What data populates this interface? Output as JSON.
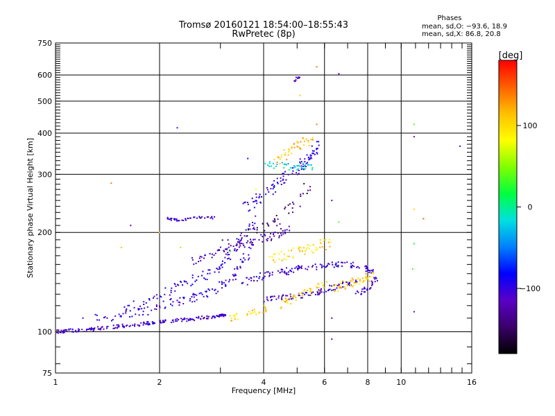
{
  "chart_data": {
    "type": "scatter",
    "title": "Tromsø 20160121 18:54:00–18:55:43",
    "subtitle": "RwPretec (8p)",
    "xlabel": "Frequency [MHz]",
    "ylabel": "Stationary phase Virtual Height [km]",
    "x_scale": "log",
    "y_scale": "log",
    "xlim": [
      1,
      16
    ],
    "ylim": [
      75,
      750
    ],
    "x_ticks": [
      1,
      2,
      4,
      6,
      8,
      10,
      16
    ],
    "x_tick_labels": [
      "1",
      "2",
      "4",
      "6",
      "8",
      "10",
      "16"
    ],
    "x_grid": [
      2,
      4,
      6,
      8,
      10
    ],
    "y_ticks": [
      75,
      100,
      200,
      300,
      400,
      500,
      600,
      750
    ],
    "y_tick_labels": [
      "75",
      "100",
      "200",
      "300",
      "400",
      "500",
      "600",
      "750"
    ],
    "y_grid": [
      100,
      200,
      300,
      400,
      500,
      600
    ],
    "grid": true,
    "legend": {
      "heading": "Phases",
      "lines": [
        "mean, sd,O: −93.6, 18.9",
        "mean, sd,X:  86.8, 20.8"
      ],
      "placement": "top-right"
    },
    "colorbar": {
      "label": "[deg]",
      "min": -180,
      "max": 180,
      "ticks": [
        100,
        0,
        -100
      ],
      "tick_labels": [
        "100",
        "0",
        "−100"
      ],
      "colormap": [
        "#000000",
        "#3a006a",
        "#5a00c8",
        "#0000ff",
        "#0080ff",
        "#00e0e0",
        "#00ff40",
        "#80ff00",
        "#ffff00",
        "#ffc000",
        "#ff6000",
        "#ff0000"
      ]
    },
    "series": [
      {
        "x": [
          1.0,
          1.05,
          1.1,
          1.18,
          1.28,
          1.4,
          1.55,
          1.7,
          1.85,
          2.0,
          2.2,
          2.4,
          2.6,
          2.8,
          3.0,
          3.1
        ],
        "y": [
          100,
          100,
          101,
          101,
          102,
          103,
          104,
          105,
          106,
          107,
          108,
          109,
          110,
          111,
          112,
          113
        ],
        "phase": -110,
        "spread": 0.012,
        "density": 14
      },
      {
        "x": [
          1.3,
          1.5,
          1.7,
          1.9,
          2.1,
          2.3,
          2.5,
          2.7,
          2.9,
          3.1,
          3.3,
          3.5,
          3.7
        ],
        "y": [
          110,
          112,
          114,
          117,
          121,
          124,
          127,
          130,
          134,
          140,
          150,
          165,
          180
        ],
        "phase": -105,
        "spread": 0.03,
        "density": 10
      },
      {
        "x": [
          1.6,
          1.8,
          2.0,
          2.2,
          2.4,
          2.6,
          2.8,
          3.0,
          3.2,
          3.4,
          3.6,
          3.8
        ],
        "y": [
          118,
          122,
          128,
          135,
          140,
          145,
          152,
          160,
          170,
          185,
          200,
          220
        ],
        "phase": -100,
        "spread": 0.035,
        "density": 9
      },
      {
        "x": [
          2.4,
          2.7,
          3.0,
          3.3,
          3.6,
          3.9,
          4.2,
          4.5,
          4.8
        ],
        "y": [
          160,
          168,
          175,
          180,
          185,
          190,
          195,
          200,
          205
        ],
        "phase": -120,
        "spread": 0.03,
        "density": 10
      },
      {
        "x": [
          3.5,
          3.8,
          4.0,
          4.3,
          4.6,
          4.9,
          5.2,
          5.4,
          5.6,
          5.8
        ],
        "y": [
          240,
          250,
          260,
          275,
          290,
          305,
          320,
          335,
          350,
          370
        ],
        "phase": -100,
        "spread": 0.04,
        "density": 11
      },
      {
        "x": [
          3.4,
          3.7,
          4.0,
          4.3,
          4.6,
          4.9,
          5.2
        ],
        "y": [
          140,
          145,
          148,
          150,
          152,
          155,
          158
        ],
        "phase": -105,
        "spread": 0.025,
        "density": 10
      },
      {
        "x": [
          4.0,
          4.3,
          4.6,
          5.0,
          5.4,
          5.8,
          6.2,
          6.6,
          7.0,
          7.4
        ],
        "y": [
          125,
          126,
          127,
          128,
          130,
          132,
          135,
          138,
          140,
          142
        ],
        "phase": -110,
        "spread": 0.02,
        "density": 10
      },
      {
        "x": [
          5.0,
          5.5,
          6.0,
          6.5,
          7.0,
          7.5,
          8.0,
          8.4
        ],
        "y": [
          155,
          157,
          158,
          160,
          160,
          158,
          155,
          150
        ],
        "phase": -110,
        "spread": 0.02,
        "density": 10
      },
      {
        "x": [
          7.4,
          7.8,
          8.2,
          8.5
        ],
        "y": [
          130,
          133,
          138,
          145
        ],
        "phase": -110,
        "spread": 0.02,
        "density": 10
      },
      {
        "x": [
          2.1,
          2.2,
          2.3,
          2.5,
          2.7,
          2.9
        ],
        "y": [
          220,
          218,
          218,
          220,
          222,
          222
        ],
        "phase": -110,
        "spread": 0.01,
        "density": 8
      },
      {
        "x": [
          4.0,
          4.4,
          4.8,
          5.2,
          5.6
        ],
        "y": [
          320,
          318,
          316,
          316,
          316
        ],
        "phase": -20,
        "spread": 0.025,
        "density": 10
      },
      {
        "x": [
          4.5,
          4.8,
          5.2,
          5.6,
          6.0
        ],
        "y": [
          120,
          125,
          130,
          135,
          140
        ],
        "phase": 110,
        "spread": 0.03,
        "density": 11
      },
      {
        "x": [
          3.2,
          3.5,
          3.8,
          4.1
        ],
        "y": [
          110,
          113,
          115,
          118
        ],
        "phase": 105,
        "spread": 0.025,
        "density": 10
      },
      {
        "x": [
          4.2,
          4.6,
          5.0,
          5.4,
          5.8,
          6.2
        ],
        "y": [
          165,
          170,
          175,
          178,
          182,
          186
        ],
        "phase": 100,
        "spread": 0.035,
        "density": 11
      },
      {
        "x": [
          4.3,
          4.6,
          4.9,
          5.2,
          5.5
        ],
        "y": [
          330,
          345,
          360,
          375,
          390
        ],
        "phase": 115,
        "spread": 0.04,
        "density": 10
      },
      {
        "x": [
          6.3,
          6.7,
          7.1,
          7.5,
          7.9,
          8.3
        ],
        "y": [
          135,
          138,
          140,
          142,
          145,
          148
        ],
        "phase": 105,
        "spread": 0.03,
        "density": 10
      },
      {
        "x": [
          3.0,
          3.4,
          3.8,
          4.2,
          4.6,
          5.0,
          5.4
        ],
        "y": [
          180,
          190,
          200,
          215,
          230,
          250,
          270
        ],
        "phase": -140,
        "spread": 0.05,
        "density": 9
      },
      {
        "x": [
          4.9,
          5.0,
          5.1
        ],
        "y": [
          575,
          590,
          580
        ],
        "phase": -115,
        "spread": 0.01,
        "density": 6
      }
    ],
    "scatter_points": [
      [
        1.45,
        282,
        140
      ],
      [
        2.25,
        415,
        -110
      ],
      [
        3.6,
        335,
        -90
      ],
      [
        6.6,
        605,
        -110
      ],
      [
        10.9,
        425,
        40
      ],
      [
        10.9,
        390,
        -110
      ],
      [
        11.6,
        220,
        150
      ],
      [
        14.8,
        365,
        -100
      ],
      [
        10.9,
        235,
        100
      ],
      [
        10.9,
        185,
        20
      ],
      [
        10.8,
        155,
        30
      ],
      [
        10.9,
        115,
        -110
      ],
      [
        6.3,
        95,
        -110
      ],
      [
        5.1,
        520,
        110
      ],
      [
        5.7,
        425,
        140
      ],
      [
        2.0,
        200,
        110
      ],
      [
        1.65,
        210,
        -110
      ],
      [
        1.55,
        180,
        110
      ],
      [
        2.3,
        180,
        110
      ],
      [
        3.8,
        270,
        80
      ],
      [
        6.3,
        250,
        -110
      ],
      [
        6.6,
        215,
        40
      ],
      [
        6.3,
        110,
        -110
      ],
      [
        5.7,
        635,
        140
      ],
      [
        3.2,
        175,
        30
      ],
      [
        1.2,
        110,
        -110
      ],
      [
        1.05,
        100,
        -110
      ]
    ]
  }
}
